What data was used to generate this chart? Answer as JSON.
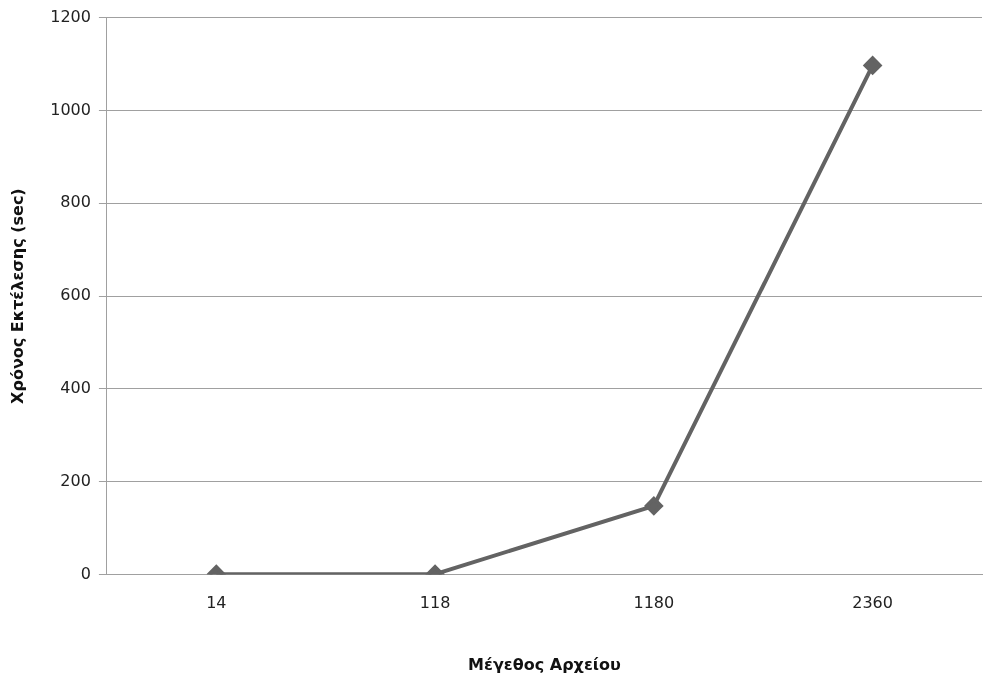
{
  "chart_data": {
    "type": "line",
    "xlabel": "Μέγεθος Αρχείου",
    "ylabel": "Χρόνος Εκτέλεσης (sec)",
    "categories": [
      "14",
      "118",
      "1180",
      "2360"
    ],
    "series": [
      {
        "color": "#636363",
        "values": [
          1,
          1,
          148,
          1097
        ]
      }
    ],
    "ylim": [
      0,
      1200
    ],
    "yticks": [
      0,
      200,
      400,
      600,
      800,
      1000,
      1200
    ],
    "grid": "y",
    "legend": false,
    "marker": "diamond",
    "line_style": "solid"
  }
}
